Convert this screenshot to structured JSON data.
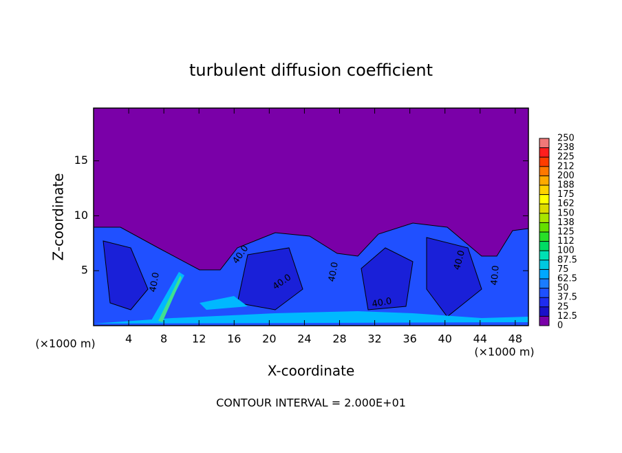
{
  "chart_data": {
    "type": "contour",
    "title": "turbulent diffusion coefficient",
    "xlabel": "X-coordinate",
    "ylabel": "Z-coordinate",
    "x_unit_label": "(×1000 m)",
    "x_unit_label_right": "(×1000 m)",
    "xlim": [
      0,
      49.5
    ],
    "ylim": [
      0,
      19.8
    ],
    "xticks": [
      4,
      8,
      12,
      16,
      20,
      24,
      28,
      32,
      36,
      40,
      44,
      48
    ],
    "yticks": [
      5,
      10,
      15
    ],
    "contour_labels": [
      "40.0",
      "40.0",
      "40.0",
      "40.0",
      "40.0",
      "40.0",
      "40.0"
    ],
    "footnote": "CONTOUR INTERVAL = 2.000E+01",
    "colorbar": {
      "levels": [
        0,
        12.5,
        25,
        37.5,
        50,
        62.5,
        75,
        87.5,
        100,
        112,
        125,
        138,
        150,
        162,
        175,
        188,
        200,
        212,
        225,
        238,
        250
      ],
      "colors": [
        "#7a00a8",
        "#1a10c8",
        "#1e2cf0",
        "#1e50ff",
        "#1a7cff",
        "#00a8ff",
        "#00c8e0",
        "#00e0b4",
        "#00dc64",
        "#28e028",
        "#64e000",
        "#a8e600",
        "#dcdc00",
        "#ffff00",
        "#ffd200",
        "#ffaa00",
        "#ff7800",
        "#ff3c00",
        "#ff1e1e",
        "#f07878"
      ]
    }
  }
}
